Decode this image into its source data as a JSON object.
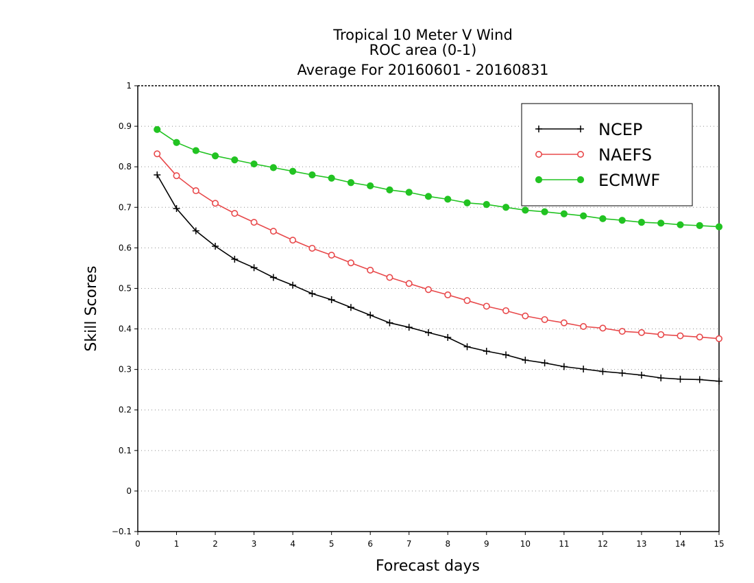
{
  "chart_data": {
    "type": "line",
    "title_lines": [
      "Tropical 10 Meter V Wind",
      "ROC area (0-1)",
      "Average For 20160601 - 20160831"
    ],
    "xlabel": "Forecast days",
    "ylabel": "Skill Scores",
    "xlim": [
      0,
      15
    ],
    "ylim": [
      -0.1,
      1
    ],
    "x_ticks": [
      "0",
      "1",
      "2",
      "3",
      "4",
      "5",
      "6",
      "7",
      "8",
      "9",
      "10",
      "11",
      "12",
      "13",
      "14",
      "15"
    ],
    "y_ticks": [
      "−0.1",
      "0",
      "0.1",
      "0.2",
      "0.3",
      "0.4",
      "0.5",
      "0.6",
      "0.7",
      "0.8",
      "0.9",
      "1"
    ],
    "grid": "horizontal dotted",
    "legend_position": "top-right",
    "x": [
      0.5,
      1,
      1.5,
      2,
      2.5,
      3,
      3.5,
      4,
      4.5,
      5,
      5.5,
      6,
      6.5,
      7,
      7.5,
      8,
      8.5,
      9,
      9.5,
      10,
      10.5,
      11,
      11.5,
      12,
      12.5,
      13,
      13.5,
      14,
      14.5,
      15
    ],
    "series": [
      {
        "name": "NCEP",
        "color": "#000000",
        "marker": "plus",
        "values": [
          0.78,
          0.697,
          0.642,
          0.604,
          0.572,
          0.551,
          0.527,
          0.508,
          0.487,
          0.472,
          0.453,
          0.434,
          0.415,
          0.404,
          0.391,
          0.379,
          0.356,
          0.345,
          0.336,
          0.323,
          0.316,
          0.307,
          0.301,
          0.295,
          0.291,
          0.286,
          0.279,
          0.276,
          0.275,
          0.271
        ]
      },
      {
        "name": "NAEFS",
        "color": "#e8484a",
        "marker": "open-circle",
        "values": [
          0.832,
          0.778,
          0.741,
          0.71,
          0.685,
          0.663,
          0.641,
          0.619,
          0.599,
          0.582,
          0.563,
          0.545,
          0.527,
          0.512,
          0.497,
          0.484,
          0.47,
          0.456,
          0.445,
          0.432,
          0.423,
          0.415,
          0.406,
          0.402,
          0.394,
          0.391,
          0.386,
          0.383,
          0.38,
          0.376
        ]
      },
      {
        "name": "ECMWF",
        "color": "#22c322",
        "marker": "filled-circle",
        "values": [
          0.892,
          0.86,
          0.84,
          0.827,
          0.817,
          0.807,
          0.798,
          0.789,
          0.78,
          0.772,
          0.761,
          0.753,
          0.743,
          0.737,
          0.727,
          0.72,
          0.711,
          0.707,
          0.7,
          0.693,
          0.689,
          0.684,
          0.679,
          0.672,
          0.668,
          0.663,
          0.661,
          0.657,
          0.655,
          0.652
        ]
      }
    ]
  }
}
